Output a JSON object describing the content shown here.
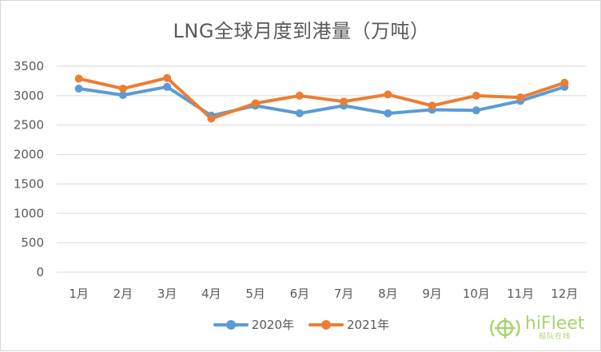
{
  "chart_data": {
    "type": "line",
    "title": "LNG全球月度到港量（万吨）",
    "xlabel": "",
    "ylabel": "",
    "categories": [
      "1月",
      "2月",
      "3月",
      "4月",
      "5月",
      "6月",
      "7月",
      "8月",
      "9月",
      "10月",
      "11月",
      "12月"
    ],
    "ylim": [
      0,
      3500
    ],
    "yticks": [
      0,
      500,
      1000,
      1500,
      2000,
      2500,
      3000,
      3500
    ],
    "grid": "horizontal",
    "legend_position": "bottom",
    "series": [
      {
        "name": "2020年",
        "color": "#5b9bd5",
        "values": [
          3120,
          3010,
          3150,
          2660,
          2830,
          2700,
          2830,
          2700,
          2760,
          2750,
          2910,
          3150
        ]
      },
      {
        "name": "2021年",
        "color": "#ed7d31",
        "values": [
          3290,
          3120,
          3300,
          2610,
          2870,
          3000,
          2900,
          3020,
          2830,
          3000,
          2970,
          3220
        ]
      }
    ]
  },
  "watermark": {
    "brand": "hiFleet",
    "subtitle": "船队在线",
    "icon": "globe-signal-icon",
    "color": "#8cc63f"
  }
}
